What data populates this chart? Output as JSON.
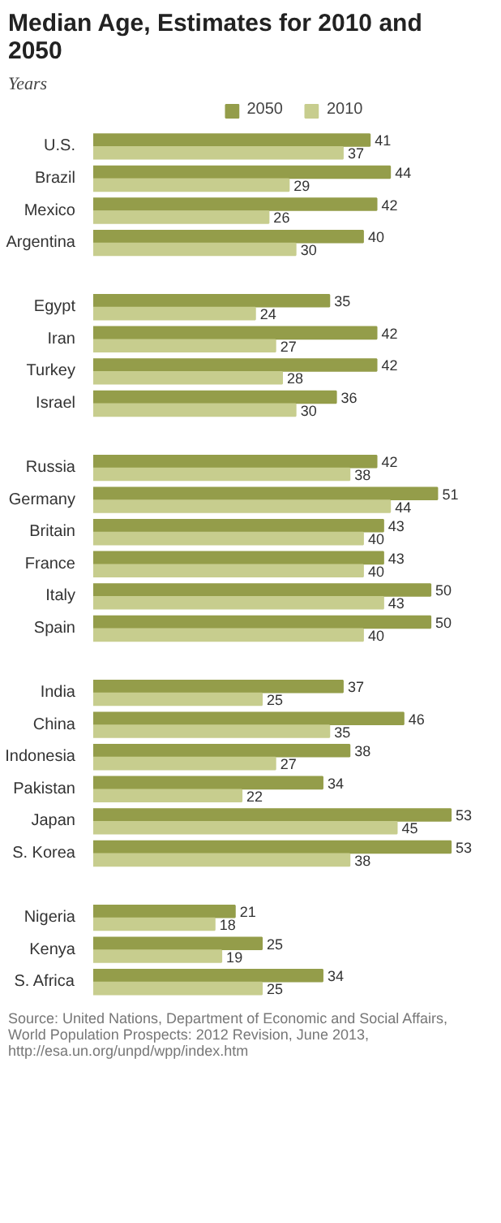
{
  "chart_data": {
    "type": "bar",
    "orientation": "horizontal",
    "title": "Median Age, Estimates for 2010 and 2050",
    "subtitle": "Years",
    "categories": [
      "U.S.",
      "Brazil",
      "Mexico",
      "Argentina",
      null,
      "Egypt",
      "Iran",
      "Turkey",
      "Israel",
      null,
      "Russia",
      "Germany",
      "Britain",
      "France",
      "Italy",
      "Spain",
      null,
      "India",
      "China",
      "Indonesia",
      "Pakistan",
      "Japan",
      "S. Korea",
      null,
      "Nigeria",
      "Kenya",
      "S. Africa"
    ],
    "series": [
      {
        "name": "2050",
        "color": "#949d4a",
        "values": [
          41,
          44,
          42,
          40,
          null,
          35,
          42,
          42,
          36,
          null,
          42,
          51,
          43,
          43,
          50,
          50,
          null,
          37,
          46,
          38,
          34,
          53,
          53,
          null,
          21,
          25,
          34
        ]
      },
      {
        "name": "2010",
        "color": "#c7cd8e",
        "values": [
          37,
          29,
          26,
          30,
          null,
          24,
          27,
          28,
          30,
          null,
          38,
          44,
          40,
          40,
          43,
          40,
          null,
          25,
          35,
          27,
          22,
          45,
          38,
          null,
          18,
          19,
          25
        ]
      }
    ],
    "data_labels": true,
    "legend": "top",
    "grid": false,
    "annotations": [
      "Source: United Nations, Department of Economic and Social Affairs, World Population Prospects: 2012 Revision, June 2013, http://esa.un.org/unpd/wpp/index.htm"
    ]
  }
}
